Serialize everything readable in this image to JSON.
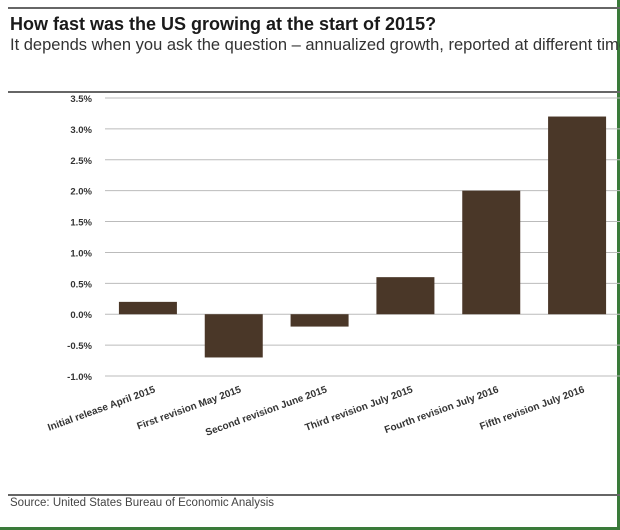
{
  "chart_data": {
    "type": "bar",
    "title": "How fast was the US growing at the start of 2015?",
    "subtitle": "It depends when you ask the question – annualized growth, reported at different times",
    "categories": [
      "Initial release April 2015",
      "First revision May 2015",
      "Second revision June 2015",
      "Third revision July 2015",
      "Fourth revision July 2016",
      "Fifth revision July 2016"
    ],
    "values": [
      0.2,
      -0.7,
      -0.2,
      0.6,
      2.0,
      3.2
    ],
    "ylim": [
      -1.0,
      3.5
    ],
    "yticks": [
      "3.5%",
      "3.0%",
      "2.5%",
      "2.0%",
      "1.5%",
      "1.0%",
      "0.5%",
      "0.0%",
      "-0.5%",
      "-1.0%"
    ],
    "ytick_values": [
      3.5,
      3.0,
      2.5,
      2.0,
      1.5,
      1.0,
      0.5,
      0.0,
      -0.5,
      -1.0
    ],
    "xlabel": "",
    "ylabel": "",
    "grid": true,
    "bar_color": "#4a3728",
    "source": "Source: United States Bureau of Economic Analysis"
  }
}
